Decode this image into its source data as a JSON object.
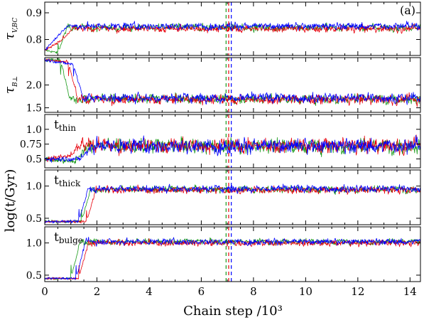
{
  "figure": {
    "panel_label": "(a)",
    "xlabel": "Chain step /10³",
    "shared_ylabel": "log(t/Gyr)"
  },
  "colors": {
    "red": "#e8000b",
    "green": "#1a9a1a",
    "blue": "#0000ff"
  },
  "chart_data": [
    {
      "type": "line",
      "panel": "tau_v_bc",
      "ylabel": "τ V,BC",
      "ylabel_main": "τ",
      "ylabel_sub": "V,BC",
      "xlim": [
        0,
        14.4
      ],
      "ylim": [
        0.74,
        0.94
      ],
      "yticks": [
        0.8,
        0.9
      ],
      "xticks": [
        0,
        2,
        4,
        6,
        8,
        10,
        12,
        14
      ],
      "burn_in": [
        0.75,
        0.8,
        0.85
      ],
      "plateau": [
        0.845,
        0.84,
        0.85
      ],
      "noise": 0.018,
      "vlines": [
        6.95,
        7.05,
        7.15
      ],
      "series": [
        {
          "color": "green",
          "start": 0.76,
          "rise_at": 0.5
        },
        {
          "color": "red",
          "start": 0.76,
          "rise_at": 0.7
        },
        {
          "color": "blue",
          "start": 0.76,
          "rise_at": 0.85
        }
      ]
    },
    {
      "type": "line",
      "panel": "tau_b_perp",
      "ylabel": "τ B⊥",
      "ylabel_main": "τ",
      "ylabel_sub": "B⊥",
      "xlim": [
        0,
        14.4
      ],
      "ylim": [
        1.4,
        2.6
      ],
      "yticks": [
        1.5,
        2.0
      ],
      "xticks": [
        0,
        2,
        4,
        6,
        8,
        10,
        12,
        14
      ],
      "burn_in": [
        2.55,
        2.5,
        2.45
      ],
      "plateau": [
        1.7,
        1.68,
        1.72
      ],
      "noise": 0.14,
      "vlines": [
        6.95,
        7.05,
        7.15
      ],
      "series": [
        {
          "color": "green",
          "start": 2.55,
          "rise_at": 0.6
        },
        {
          "color": "red",
          "start": 2.55,
          "rise_at": 0.9
        },
        {
          "color": "blue",
          "start": 2.55,
          "rise_at": 1.1
        }
      ]
    },
    {
      "type": "line",
      "panel": "t_thin",
      "ylabel": "",
      "annotation": "t",
      "annotation_sub": "thin",
      "xlim": [
        0,
        14.4
      ],
      "ylim": [
        0.35,
        1.25
      ],
      "yticks": [
        0.5,
        0.75,
        1.0
      ],
      "ytick_labels": [
        "0.5",
        "0.75",
        "1.0"
      ],
      "xticks": [
        0,
        2,
        4,
        6,
        8,
        10,
        12,
        14
      ],
      "burn_in": [
        0.45,
        0.55,
        0.5
      ],
      "plateau": [
        0.72,
        0.72,
        0.72
      ],
      "noise": 0.17,
      "vlines": [
        6.95,
        7.05,
        7.15
      ],
      "series": [
        {
          "color": "green",
          "start": 0.5,
          "rise_at": 1.2
        },
        {
          "color": "red",
          "start": 0.5,
          "rise_at": 1.0
        },
        {
          "color": "blue",
          "start": 0.5,
          "rise_at": 1.4
        }
      ]
    },
    {
      "type": "line",
      "panel": "t_thick",
      "ylabel": "",
      "annotation": "t",
      "annotation_sub": "thick",
      "xlim": [
        0,
        14.4
      ],
      "ylim": [
        0.4,
        1.25
      ],
      "yticks": [
        0.5,
        1.0
      ],
      "xticks": [
        0,
        2,
        4,
        6,
        8,
        10,
        12,
        14
      ],
      "burn_in": [
        0.45,
        0.45,
        0.45
      ],
      "plateau": [
        0.95,
        0.94,
        0.96
      ],
      "noise": 0.075,
      "vlines": [
        6.95,
        7.05,
        7.15
      ],
      "series": [
        {
          "color": "green",
          "start": 0.45,
          "rise_at": 1.4
        },
        {
          "color": "red",
          "start": 0.45,
          "rise_at": 1.6
        },
        {
          "color": "blue",
          "start": 0.45,
          "rise_at": 1.3
        }
      ]
    },
    {
      "type": "line",
      "panel": "t_bulge",
      "ylabel": "",
      "annotation": "t",
      "annotation_sub": "bulge",
      "xlim": [
        0,
        14.4
      ],
      "ylim": [
        0.4,
        1.25
      ],
      "yticks": [
        0.5,
        1.0
      ],
      "xticks": [
        0,
        2,
        4,
        6,
        8,
        10,
        12,
        14
      ],
      "xtick_labels": [
        "0",
        "2",
        "4",
        "6",
        "8",
        "10",
        "12",
        "14"
      ],
      "burn_in": [
        0.45,
        0.45,
        0.45
      ],
      "plateau": [
        1.02,
        1.0,
        1.02
      ],
      "noise": 0.065,
      "cap": 1.12,
      "vlines": [
        6.95,
        7.05,
        7.15
      ],
      "series": [
        {
          "color": "green",
          "start": 0.45,
          "rise_at": 1.0
        },
        {
          "color": "red",
          "start": 0.45,
          "rise_at": 1.3
        },
        {
          "color": "blue",
          "start": 0.45,
          "rise_at": 1.2
        }
      ]
    }
  ]
}
